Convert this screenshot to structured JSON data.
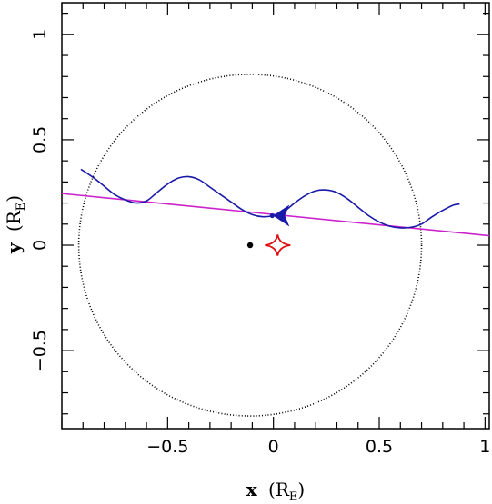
{
  "chart_data": {
    "type": "line",
    "xlabel": {
      "symbol": "x",
      "unit_open": "(R",
      "unit_sub": "E",
      "unit_close": ")"
    },
    "ylabel": {
      "symbol": "y",
      "unit_open": "(R",
      "unit_sub": "E",
      "unit_close": ")"
    },
    "xlim": [
      -1.0,
      1.02
    ],
    "ylim": [
      -0.87,
      1.15
    ],
    "x_ticks": [
      -0.5,
      0,
      0.5,
      1
    ],
    "x_tick_labels": [
      "−0.5",
      "0",
      "0.5",
      "1"
    ],
    "y_ticks": [
      -0.5,
      0,
      0.5,
      1
    ],
    "y_tick_labels": [
      "−0.5",
      "0",
      "0.5",
      "1"
    ],
    "grid": false,
    "series": [
      {
        "kind": "dotted-circle",
        "center": [
          -0.11,
          0.0
        ],
        "radius": 0.81,
        "color": "#000000"
      },
      {
        "kind": "line",
        "x": [
          -1.0,
          1.02
        ],
        "y": [
          0.245,
          0.045
        ],
        "color": "#cc22cc"
      },
      {
        "kind": "line",
        "color": "#1a1aaa",
        "x": [
          -0.91,
          -0.85,
          -0.8,
          -0.75,
          -0.7,
          -0.65,
          -0.6,
          -0.55,
          -0.5,
          -0.45,
          -0.4,
          -0.35,
          -0.3,
          -0.25,
          -0.2,
          -0.15,
          -0.1,
          -0.05,
          0.0,
          0.05,
          0.1,
          0.15,
          0.2,
          0.25,
          0.3,
          0.35,
          0.4,
          0.45,
          0.5,
          0.55,
          0.6,
          0.65,
          0.7,
          0.75,
          0.8,
          0.85,
          0.88
        ],
        "y": [
          0.36,
          0.32,
          0.28,
          0.24,
          0.215,
          0.2,
          0.21,
          0.25,
          0.29,
          0.318,
          0.325,
          0.31,
          0.275,
          0.24,
          0.205,
          0.17,
          0.145,
          0.135,
          0.14,
          0.16,
          0.2,
          0.235,
          0.258,
          0.262,
          0.25,
          0.22,
          0.18,
          0.14,
          0.11,
          0.09,
          0.082,
          0.085,
          0.1,
          0.135,
          0.165,
          0.19,
          0.195
        ]
      },
      {
        "kind": "arrow",
        "at": [
          0.05,
          0.14
        ],
        "direction": "left",
        "color": "#1a1aaa"
      },
      {
        "kind": "point",
        "x": -0.11,
        "y": 0.0,
        "color": "#000000"
      },
      {
        "kind": "caustic",
        "center": [
          0.02,
          0.0
        ],
        "half_width_x": 0.06,
        "half_height_y": 0.05,
        "color": "#dd1111"
      }
    ]
  }
}
